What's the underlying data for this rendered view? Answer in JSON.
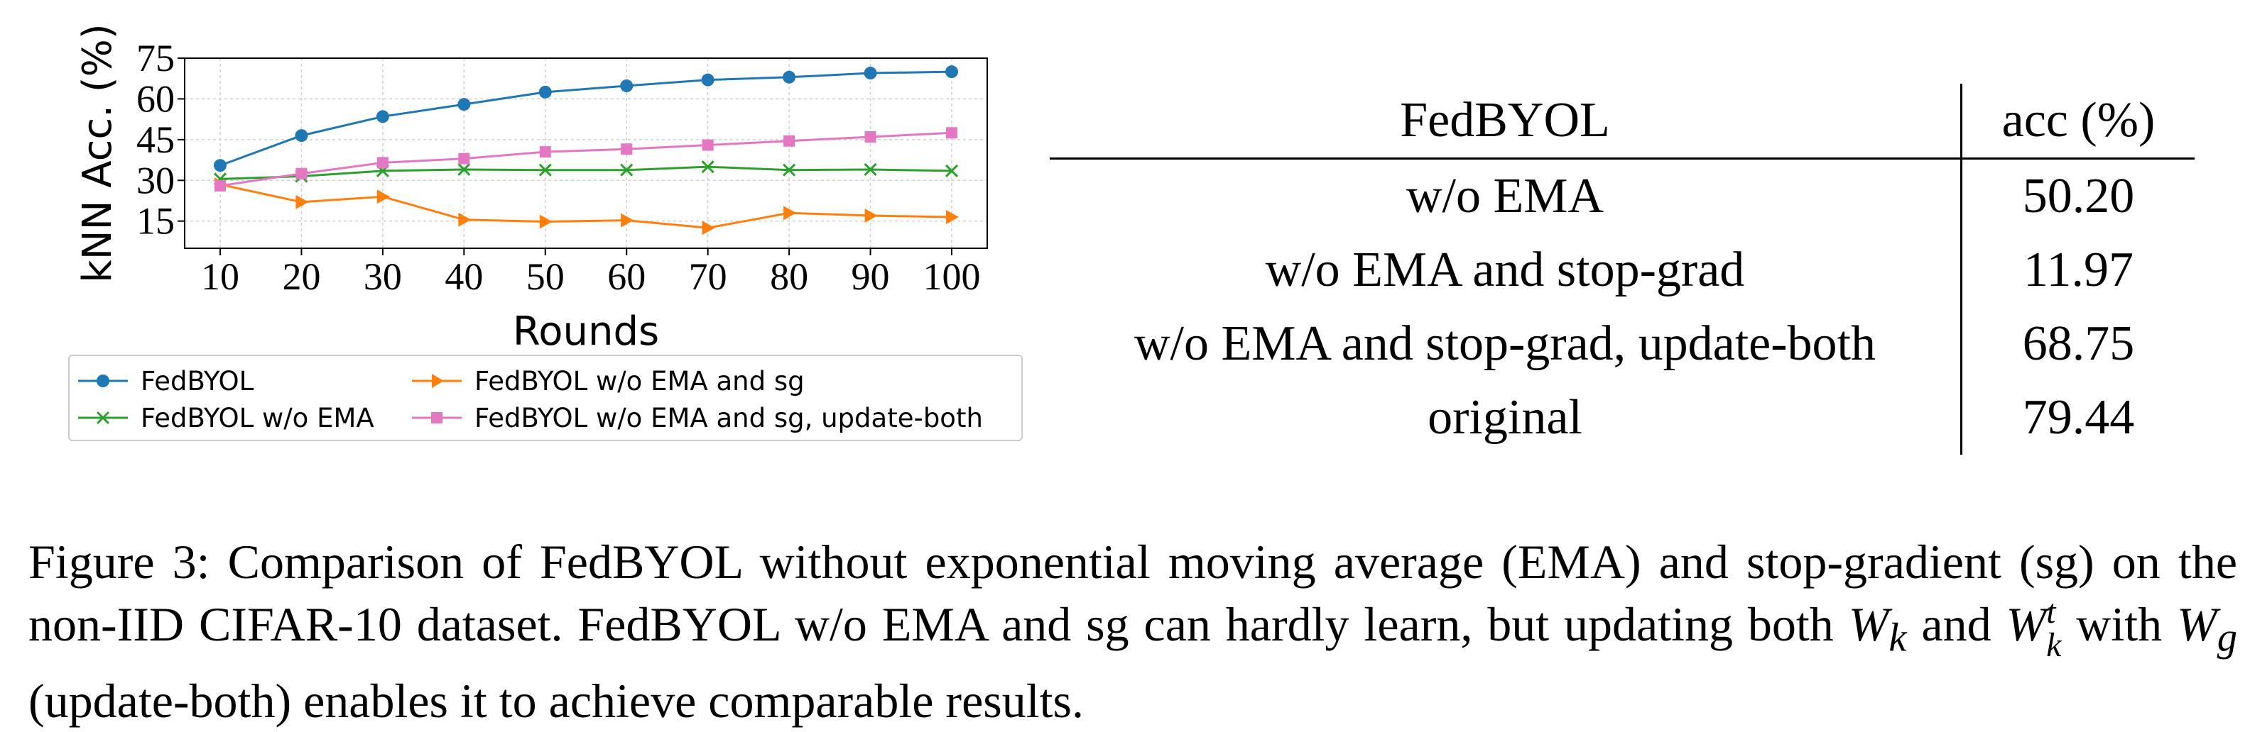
{
  "chart_data": {
    "type": "line",
    "xlabel": "Rounds",
    "ylabel": "kNN Acc. (%)",
    "x": [
      10,
      20,
      30,
      40,
      50,
      60,
      70,
      80,
      90,
      100
    ],
    "xticks": [
      "10",
      "20",
      "30",
      "40",
      "50",
      "60",
      "70",
      "80",
      "90",
      "100"
    ],
    "yticks": [
      "15",
      "30",
      "45",
      "60",
      "75"
    ],
    "ylim": [
      5,
      75
    ],
    "grid": true,
    "legend_position": "bottom",
    "series": [
      {
        "name": "FedBYOL",
        "color": "#1f77b4",
        "marker": "circle",
        "values": [
          35.5,
          46.5,
          53.5,
          58,
          62.5,
          64.8,
          67,
          68,
          69.5,
          70
        ]
      },
      {
        "name": "FedBYOL w/o EMA",
        "color": "#2ca02c",
        "marker": "x",
        "values": [
          30.5,
          31.5,
          33.5,
          34,
          33.8,
          33.8,
          35,
          33.8,
          34,
          33.5
        ]
      },
      {
        "name": "FedBYOL w/o EMA and sg",
        "color": "#ff7f0e",
        "marker": "triangle-right",
        "values": [
          28.5,
          22,
          24,
          15.5,
          14.8,
          15.3,
          12.5,
          18,
          17,
          16.5
        ]
      },
      {
        "name": "FedBYOL w/o EMA and sg, update-both",
        "color": "#e377c2",
        "marker": "square",
        "values": [
          28,
          32.5,
          36.5,
          38,
          40.5,
          41.5,
          43,
          44.5,
          46,
          47.5
        ]
      }
    ]
  },
  "legend": [
    {
      "label": "FedBYOL"
    },
    {
      "label": "FedBYOL w/o EMA"
    },
    {
      "label": "FedBYOL w/o EMA and sg"
    },
    {
      "label": "FedBYOL w/o EMA and sg, update-both"
    }
  ],
  "table": {
    "header": {
      "method": "FedBYOL",
      "acc": "acc (%)"
    },
    "rows": [
      {
        "method": "w/o EMA",
        "acc": "50.20"
      },
      {
        "method": "w/o EMA and stop-grad",
        "acc": "11.97"
      },
      {
        "method": "w/o EMA and stop-grad, update-both",
        "acc": "68.75"
      },
      {
        "method": "original",
        "acc": "79.44"
      }
    ]
  },
  "caption": {
    "part1": "Figure 3: Comparison of FedBYOL without exponential moving average (EMA) and stop-gradient (sg) on the non-IID CIFAR-10 dataset. FedBYOL w/o EMA and sg can hardly learn, but updating both ",
    "wk": "W",
    "wk_sub": "k",
    "and": " and ",
    "wkt": "W",
    "wkt_sup": "t",
    "wkt_sub": "k",
    "with": " with ",
    "wg": "W",
    "wg_sub": "g",
    "part2": " (update-both) enables it to achieve comparable results."
  }
}
